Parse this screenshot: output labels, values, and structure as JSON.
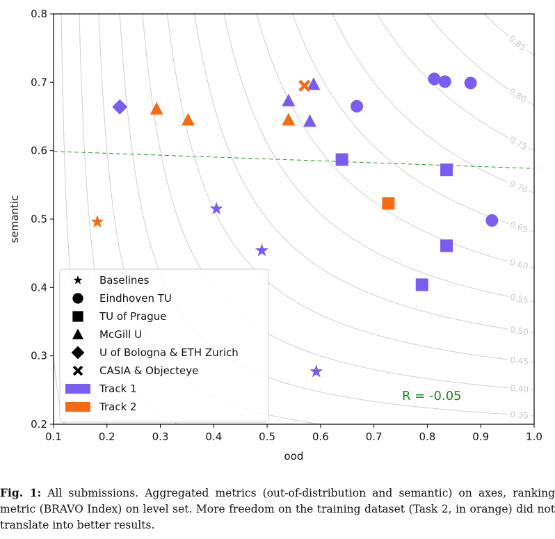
{
  "chart_data": {
    "type": "scatter",
    "xlabel": "ood",
    "ylabel": "semantic",
    "xlim": [
      0.1,
      1.0
    ],
    "ylim": [
      0.2,
      0.8
    ],
    "xticks": [
      "0.1",
      "0.2",
      "0.3",
      "0.4",
      "0.5",
      "0.6",
      "0.7",
      "0.8",
      "0.9",
      "1.0"
    ],
    "yticks": [
      "0.2",
      "0.3",
      "0.4",
      "0.5",
      "0.6",
      "0.7",
      "0.8"
    ],
    "grid": false,
    "level_set_labels": [
      "0.35",
      "0.40",
      "0.45",
      "0.50",
      "0.55",
      "0.60",
      "0.65",
      "0.70",
      "0.75",
      "0.80",
      "0.85"
    ],
    "colors": {
      "track1": "#7b5cf0",
      "track2": "#f56a13",
      "fit_line": "#2a9a2a",
      "iso": "#cfcfcf"
    },
    "fit_line": {
      "x": [
        0.1,
        1.0
      ],
      "y": [
        0.599,
        0.574
      ]
    },
    "annotation": "R = -0.05",
    "legend": {
      "position": "lower-left",
      "entries": [
        {
          "marker": "star",
          "label": "Baselines"
        },
        {
          "marker": "circle",
          "label": "Eindhoven TU"
        },
        {
          "marker": "square",
          "label": "TU of Prague"
        },
        {
          "marker": "triangle",
          "label": "McGill U"
        },
        {
          "marker": "diamond",
          "label": "U of Bologna & ETH Zurich"
        },
        {
          "marker": "x",
          "label": "CASIA & Objecteye"
        },
        {
          "marker": "patch",
          "color": "#7b5cf0",
          "label": "Track 1"
        },
        {
          "marker": "patch",
          "color": "#f56a13",
          "label": "Track 2"
        }
      ]
    },
    "series": [
      {
        "team": "Baselines",
        "marker": "star",
        "track": 2,
        "points": [
          [
            0.182,
            0.496
          ]
        ]
      },
      {
        "team": "Baselines",
        "marker": "star",
        "track": 1,
        "points": [
          [
            0.405,
            0.515
          ],
          [
            0.49,
            0.454
          ],
          [
            0.592,
            0.277
          ]
        ]
      },
      {
        "team": "Eindhoven TU",
        "marker": "circle",
        "track": 1,
        "points": [
          [
            0.668,
            0.665
          ],
          [
            0.813,
            0.705
          ],
          [
            0.833,
            0.701
          ],
          [
            0.881,
            0.699
          ],
          [
            0.921,
            0.498
          ]
        ]
      },
      {
        "team": "TU of Prague",
        "marker": "square",
        "track": 1,
        "points": [
          [
            0.64,
            0.587
          ],
          [
            0.836,
            0.572
          ],
          [
            0.836,
            0.461
          ],
          [
            0.79,
            0.404
          ]
        ]
      },
      {
        "team": "TU of Prague",
        "marker": "square",
        "track": 2,
        "points": [
          [
            0.727,
            0.523
          ]
        ]
      },
      {
        "team": "McGill U",
        "marker": "triangle",
        "track": 1,
        "points": [
          [
            0.54,
            0.673
          ],
          [
            0.587,
            0.697
          ],
          [
            0.58,
            0.643
          ]
        ]
      },
      {
        "team": "McGill U",
        "marker": "triangle",
        "track": 2,
        "points": [
          [
            0.293,
            0.661
          ],
          [
            0.352,
            0.645
          ],
          [
            0.54,
            0.645
          ]
        ]
      },
      {
        "team": "U of Bologna & ETH Zurich",
        "marker": "diamond",
        "track": 1,
        "points": [
          [
            0.224,
            0.664
          ]
        ]
      },
      {
        "team": "CASIA & Objecteye",
        "marker": "x",
        "track": 2,
        "points": [
          [
            0.57,
            0.695
          ]
        ]
      }
    ]
  },
  "caption": {
    "label": "Fig. 1:",
    "text": " All submissions. Aggregated metrics (out-of-distribution and semantic) on axes, ranking metric (BRAVO Index) on level set. More freedom on the training dataset (Task 2, in orange) did not translate into better results."
  }
}
